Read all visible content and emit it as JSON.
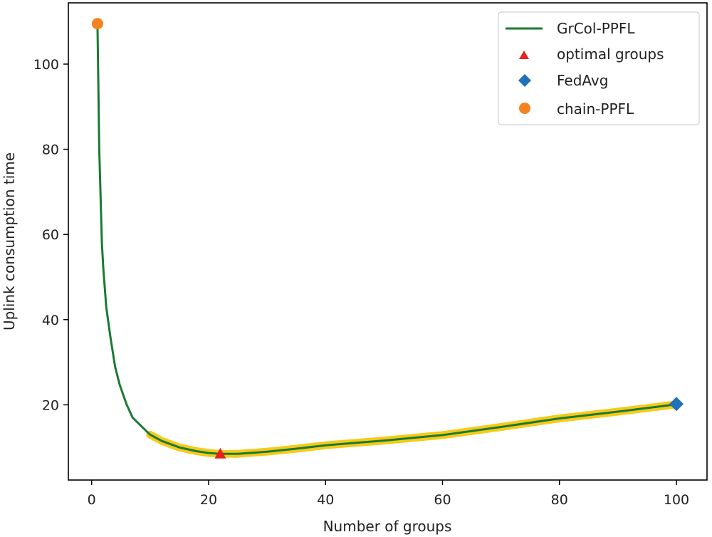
{
  "chart_data": {
    "type": "line",
    "title": "",
    "xlabel": "Number of groups",
    "ylabel": "Uplink consumption time",
    "xlim": [
      -4,
      104
    ],
    "ylim": [
      -2.3,
      114.5
    ],
    "xticks": [
      0,
      20,
      40,
      60,
      80,
      100
    ],
    "yticks": [
      20,
      40,
      60,
      80,
      100
    ],
    "grid": false,
    "legend_position": "upper right",
    "series": [
      {
        "name": "GrCol-PPFL",
        "type": "line",
        "color": "#1a7a33",
        "x": [
          1,
          1.3,
          1.75,
          2,
          2.5,
          3.2,
          4,
          4.8,
          6,
          7,
          8.7,
          10,
          12,
          15,
          18,
          20,
          22,
          25,
          30,
          35,
          40,
          50,
          60,
          70,
          80,
          90,
          100
        ],
        "y": [
          109.5,
          80,
          58,
          52,
          43,
          36,
          29,
          24.7,
          20,
          17,
          14.7,
          13,
          11.5,
          10,
          9.1,
          8.7,
          8.5,
          8.5,
          9.0,
          9.7,
          10.5,
          11.6,
          12.9,
          14.8,
          16.8,
          18.4,
          20.1
        ]
      },
      {
        "name": "highlight",
        "type": "band",
        "color": "#f5c400",
        "x": [
          10,
          12,
          15,
          18,
          20,
          22,
          25,
          30,
          35,
          40,
          50,
          60,
          70,
          80,
          90,
          100
        ],
        "y": [
          13,
          11.5,
          10,
          9.1,
          8.7,
          8.5,
          8.5,
          9.0,
          9.7,
          10.5,
          11.6,
          12.9,
          14.8,
          16.8,
          18.4,
          20.1
        ]
      },
      {
        "name": "optimal groups",
        "type": "marker",
        "marker": "triangle",
        "color": "#e8221f",
        "x": [
          22
        ],
        "y": [
          8.4
        ]
      },
      {
        "name": "FedAvg",
        "type": "marker",
        "marker": "diamond",
        "color": "#1f72b8",
        "x": [
          100
        ],
        "y": [
          20.2
        ]
      },
      {
        "name": "chain-PPFL",
        "type": "marker",
        "marker": "circle",
        "color": "#f58220",
        "x": [
          1
        ],
        "y": [
          109.5
        ]
      }
    ],
    "legend": [
      "GrCol-PPFL",
      "optimal groups",
      "FedAvg",
      "chain-PPFL"
    ]
  }
}
